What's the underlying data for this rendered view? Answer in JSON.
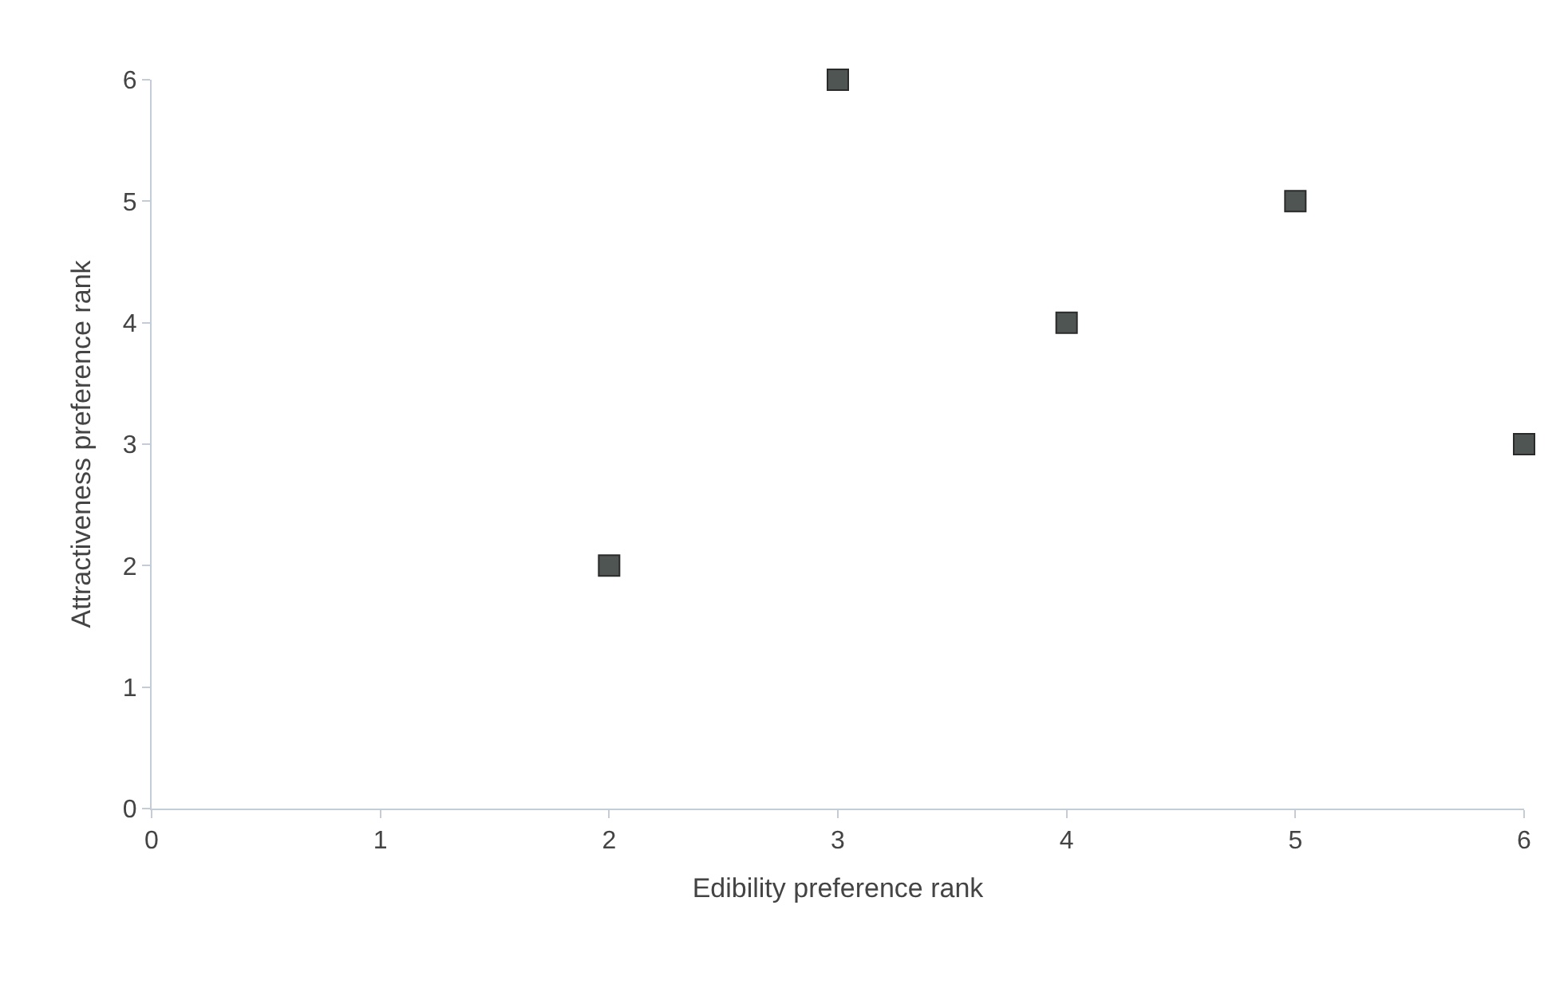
{
  "chart_data": {
    "type": "scatter",
    "xlabel": "Edibility preference rank",
    "ylabel": "Attractiveness preference rank",
    "x": [
      2,
      3,
      4,
      5,
      6
    ],
    "series": [
      {
        "color": "#4f5552",
        "values": [
          2,
          6,
          4,
          5,
          3
        ]
      }
    ],
    "xlim": [
      0,
      6
    ],
    "xticks": [
      0,
      1,
      2,
      3,
      4,
      5,
      6
    ],
    "ylim": [
      0,
      6
    ],
    "yticks": [
      0,
      1,
      2,
      3,
      4,
      5,
      6
    ],
    "marker": "square"
  }
}
